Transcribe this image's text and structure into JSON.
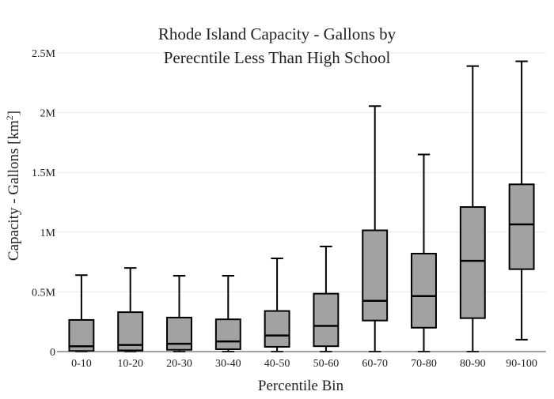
{
  "chart_data": {
    "type": "box",
    "title_lines": [
      "Rhode Island Capacity - Gallons by",
      "Perecntile Less Than High School"
    ],
    "xlabel": "Percentile Bin",
    "ylabel_main": "Capacity - Gallons  [km",
    "ylabel_sup": "2",
    "ylabel_close": "]",
    "ylim": [
      0,
      2500000
    ],
    "yticks": [
      {
        "value": 0,
        "label": "0"
      },
      {
        "value": 500000,
        "label": "0.5M"
      },
      {
        "value": 1000000,
        "label": "1M"
      },
      {
        "value": 1500000,
        "label": "1.5M"
      },
      {
        "value": 2000000,
        "label": "2M"
      },
      {
        "value": 2500000,
        "label": "2.5M"
      }
    ],
    "grid": true,
    "box_color": "#a2a2a2",
    "categories": [
      "0-10",
      "10-20",
      "20-30",
      "30-40",
      "40-50",
      "50-60",
      "60-70",
      "70-80",
      "80-90",
      "90-100"
    ],
    "boxes": [
      {
        "min": 0,
        "q1": 5000,
        "median": 45000,
        "q3": 265000,
        "max": 640000
      },
      {
        "min": 0,
        "q1": 10000,
        "median": 55000,
        "q3": 330000,
        "max": 700000
      },
      {
        "min": 0,
        "q1": 15000,
        "median": 65000,
        "q3": 285000,
        "max": 635000
      },
      {
        "min": 0,
        "q1": 20000,
        "median": 85000,
        "q3": 270000,
        "max": 635000
      },
      {
        "min": 0,
        "q1": 40000,
        "median": 135000,
        "q3": 340000,
        "max": 780000
      },
      {
        "min": 0,
        "q1": 45000,
        "median": 215000,
        "q3": 485000,
        "max": 880000
      },
      {
        "min": 0,
        "q1": 260000,
        "median": 425000,
        "q3": 1015000,
        "max": 2055000
      },
      {
        "min": 0,
        "q1": 200000,
        "median": 465000,
        "q3": 820000,
        "max": 1650000
      },
      {
        "min": 0,
        "q1": 280000,
        "median": 760000,
        "q3": 1210000,
        "max": 2390000
      },
      {
        "min": 100000,
        "q1": 690000,
        "median": 1065000,
        "q3": 1400000,
        "max": 2430000
      }
    ]
  }
}
